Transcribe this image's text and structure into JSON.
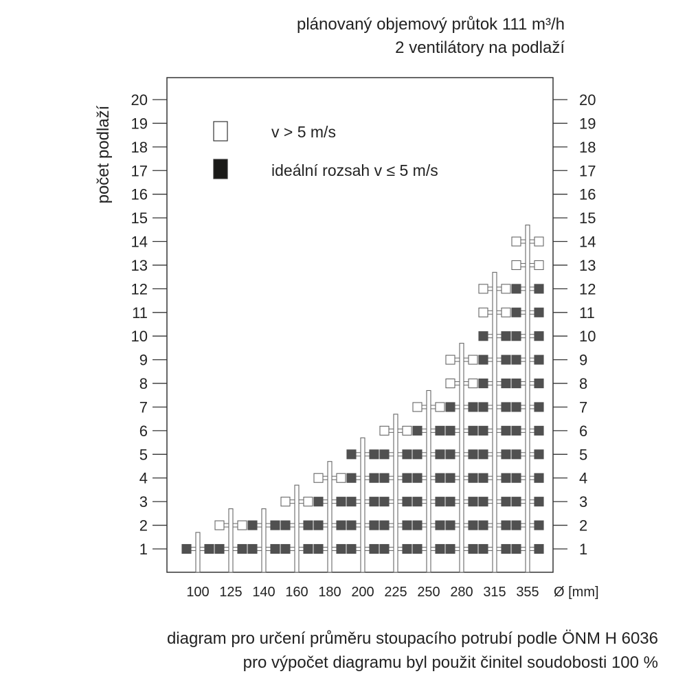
{
  "header": {
    "line1": "plánovaný objemový průtok 111 m³/h",
    "line2": "2 ventilátory na podlaží"
  },
  "footer": {
    "line1": "diagram pro určení průměru stoupacího potrubí podle ÖNM H 6036",
    "line2": "pro výpočet diagramu byl použit činitel soudobosti 100 %"
  },
  "chart_data": {
    "type": "diagram-grid",
    "ylabel": "počet podlaží",
    "xlabel": "Ø [mm]",
    "y_ticks": [
      1,
      2,
      3,
      4,
      5,
      6,
      7,
      8,
      9,
      10,
      11,
      12,
      13,
      14,
      15,
      16,
      17,
      18,
      19,
      20
    ],
    "ylim": [
      1,
      20
    ],
    "legend": {
      "position": "top-left",
      "items": [
        {
          "label": "v > 5 m/s",
          "color": "#ffffff"
        },
        {
          "label": "ideální rozsah v ≤ 5 m/s",
          "color": "#505050"
        }
      ]
    },
    "columns": [
      {
        "diameter": "100",
        "max_floors": 1,
        "ideal_up_to": 1
      },
      {
        "diameter": "125",
        "max_floors": 2,
        "ideal_up_to": 1
      },
      {
        "diameter": "140",
        "max_floors": 2,
        "ideal_up_to": 2
      },
      {
        "diameter": "160",
        "max_floors": 3,
        "ideal_up_to": 2
      },
      {
        "diameter": "180",
        "max_floors": 4,
        "ideal_up_to": 3
      },
      {
        "diameter": "200",
        "max_floors": 5,
        "ideal_up_to": 5
      },
      {
        "diameter": "225",
        "max_floors": 6,
        "ideal_up_to": 5
      },
      {
        "diameter": "250",
        "max_floors": 7,
        "ideal_up_to": 6
      },
      {
        "diameter": "280",
        "max_floors": 9,
        "ideal_up_to": 7
      },
      {
        "diameter": "315",
        "max_floors": 12,
        "ideal_up_to": 10
      },
      {
        "diameter": "355",
        "max_floors": 14,
        "ideal_up_to": 12
      }
    ]
  }
}
